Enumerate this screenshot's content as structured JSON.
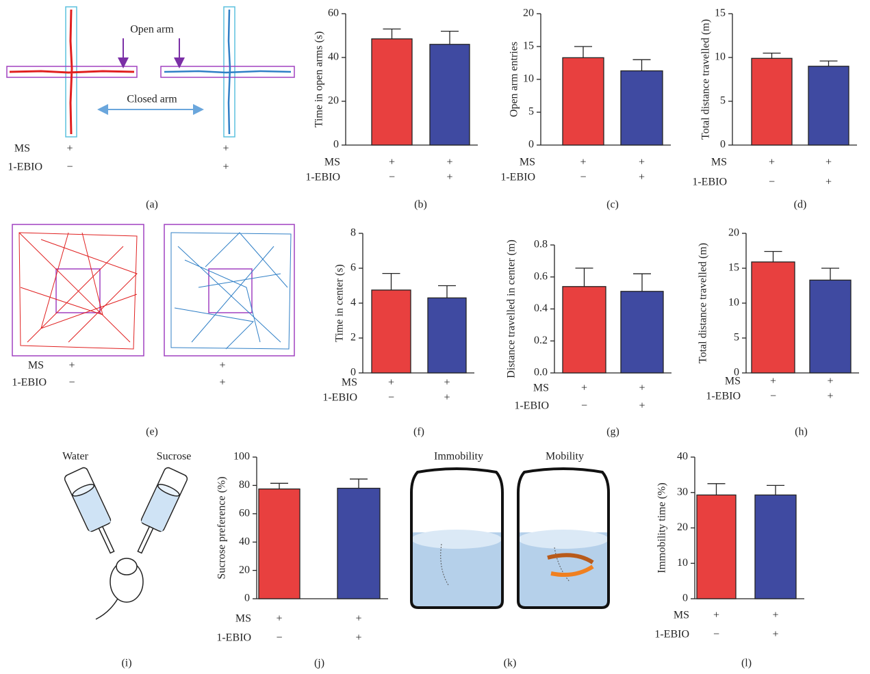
{
  "chart_data": [
    {
      "type": "bar",
      "panel_label": "(b)",
      "y_label": "Time in open arms (s)",
      "values": [
        48.5,
        46
      ],
      "errors": [
        4.5,
        6
      ],
      "colors": [
        "#e8403f",
        "#3f4aa1"
      ],
      "ylim": [
        0,
        60
      ],
      "yticks": [
        0,
        20,
        40,
        60
      ],
      "conditions": [
        {
          "name": "MS",
          "values": [
            "+",
            "+"
          ]
        },
        {
          "name": "1-EBIO",
          "values": [
            "−",
            "+"
          ]
        }
      ]
    },
    {
      "type": "bar",
      "panel_label": "(c)",
      "y_label": "Open arm entries",
      "values": [
        13.3,
        11.3
      ],
      "errors": [
        1.7,
        1.7
      ],
      "colors": [
        "#e8403f",
        "#3f4aa1"
      ],
      "ylim": [
        0,
        20
      ],
      "yticks": [
        0,
        5,
        10,
        15,
        20
      ],
      "conditions": [
        {
          "name": "MS",
          "values": [
            "+",
            "+"
          ]
        },
        {
          "name": "1-EBIO",
          "values": [
            "−",
            "+"
          ]
        }
      ]
    },
    {
      "type": "bar",
      "panel_label": "(d)",
      "y_label": "Total distance travelled (m)",
      "values": [
        9.9,
        9.0
      ],
      "errors": [
        0.6,
        0.6
      ],
      "colors": [
        "#e8403f",
        "#3f4aa1"
      ],
      "ylim": [
        0,
        15
      ],
      "yticks": [
        0,
        5,
        10,
        15
      ],
      "conditions": [
        {
          "name": "MS",
          "values": [
            "+",
            "+"
          ]
        },
        {
          "name": "1-EBIO",
          "values": [
            "−",
            "+"
          ]
        }
      ]
    },
    {
      "type": "bar",
      "panel_label": "(f)",
      "y_label": "Time in center (s)",
      "values": [
        4.75,
        4.3
      ],
      "errors": [
        0.95,
        0.7
      ],
      "colors": [
        "#e8403f",
        "#3f4aa1"
      ],
      "ylim": [
        0,
        8
      ],
      "yticks": [
        0,
        2,
        4,
        6,
        8
      ],
      "conditions": [
        {
          "name": "MS",
          "values": [
            "+",
            "+"
          ]
        },
        {
          "name": "1-EBIO",
          "values": [
            "−",
            "+"
          ]
        }
      ]
    },
    {
      "type": "bar",
      "panel_label": "(g)",
      "y_label": "Distance travelled in center (m)",
      "values": [
        0.54,
        0.51
      ],
      "errors": [
        0.115,
        0.11
      ],
      "colors": [
        "#e8403f",
        "#3f4aa1"
      ],
      "ylim": [
        0,
        0.8
      ],
      "yticks": [
        {
          "value": 0,
          "label": "0.0"
        },
        0.2,
        0.4,
        0.6,
        0.8
      ],
      "conditions": [
        {
          "name": "MS",
          "values": [
            "+",
            "+"
          ]
        },
        {
          "name": "1-EBIO",
          "values": [
            "−",
            "+"
          ]
        }
      ]
    },
    {
      "type": "bar",
      "panel_label": "(h)",
      "y_label": "Total distance travelled (m)",
      "values": [
        15.9,
        13.3
      ],
      "errors": [
        1.5,
        1.7
      ],
      "colors": [
        "#e8403f",
        "#3f4aa1"
      ],
      "ylim": [
        0,
        20
      ],
      "yticks": [
        0,
        5,
        10,
        15,
        20
      ],
      "conditions": [
        {
          "name": "MS",
          "values": [
            "+",
            "+"
          ]
        },
        {
          "name": "1-EBIO",
          "values": [
            "−",
            "+"
          ]
        }
      ]
    },
    {
      "type": "bar",
      "panel_label": "(j)",
      "y_label": "Sucrose preference (%)",
      "values": [
        77.5,
        78
      ],
      "errors": [
        4,
        6.5
      ],
      "colors": [
        "#e8403f",
        "#3f4aa1"
      ],
      "ylim": [
        0,
        100
      ],
      "yticks": [
        0,
        20,
        40,
        60,
        80,
        100
      ],
      "conditions": [
        {
          "name": "MS",
          "values": [
            "+",
            "+"
          ]
        },
        {
          "name": "1-EBIO",
          "values": [
            "−",
            "+"
          ]
        }
      ]
    },
    {
      "type": "bar",
      "panel_label": "(l)",
      "y_label": "Immobility time (%)",
      "values": [
        29.3,
        29.3
      ],
      "errors": [
        3.2,
        2.7
      ],
      "colors": [
        "#e8403f",
        "#3f4aa1"
      ],
      "ylim": [
        0,
        40
      ],
      "yticks": [
        0,
        10,
        20,
        30,
        40
      ],
      "conditions": [
        {
          "name": "MS",
          "values": [
            "+",
            "+"
          ]
        },
        {
          "name": "1-EBIO",
          "values": [
            "−",
            "+"
          ]
        }
      ]
    }
  ],
  "illustrations": {
    "a": {
      "label": "(a)",
      "annotations": [
        "Open arm",
        "Closed arm"
      ],
      "conditions": [
        {
          "name": "MS",
          "values": [
            "+",
            "+"
          ]
        },
        {
          "name": "1-EBIO",
          "values": [
            "−",
            "+"
          ]
        }
      ]
    },
    "e": {
      "label": "(e)",
      "conditions": [
        {
          "name": "MS",
          "values": [
            "+",
            "+"
          ]
        },
        {
          "name": "1-EBIO",
          "values": [
            "−",
            "+"
          ]
        }
      ]
    },
    "i": {
      "label": "(i)",
      "annotations": [
        "Water",
        "Sucrose"
      ]
    },
    "k": {
      "label": "(k)",
      "annotations": [
        "Immobility",
        "Mobility"
      ]
    }
  }
}
